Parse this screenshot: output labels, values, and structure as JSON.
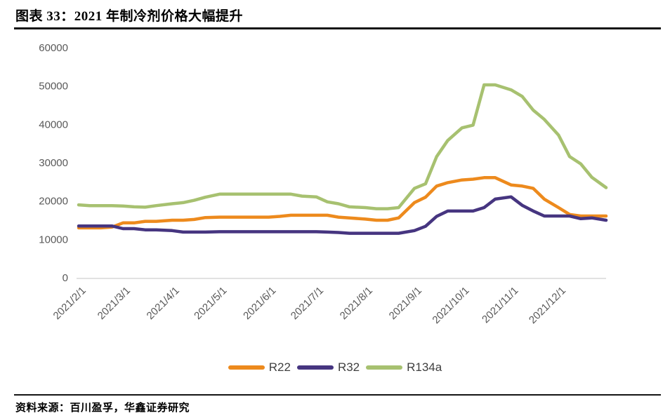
{
  "page": {
    "title": "图表 33：2021 年制冷剂价格大幅提升",
    "source": "资料来源：百川盈孚，华鑫证券研究"
  },
  "chart_data": {
    "type": "line",
    "title": "2021 年制冷剂价格大幅提升",
    "xlabel": "",
    "ylabel": "",
    "ylim": [
      0,
      60000
    ],
    "y_ticks": [
      0,
      10000,
      20000,
      30000,
      40000,
      50000,
      60000
    ],
    "x_tick_labels": [
      "2021/2/1",
      "2021/3/1",
      "2021/4/1",
      "2021/5/1",
      "2021/6/1",
      "2021/7/1",
      "2021/8/1",
      "2021/9/1",
      "2021/10/1",
      "2021/11/1",
      "2021/12/1"
    ],
    "grid": false,
    "legend_position": "bottom",
    "axis_color": "#d9d9d9",
    "x": [
      "2021/2/1",
      "2021/2/8",
      "2021/2/15",
      "2021/2/22",
      "2021/3/1",
      "2021/3/8",
      "2021/3/15",
      "2021/3/22",
      "2021/4/1",
      "2021/4/8",
      "2021/4/15",
      "2021/4/22",
      "2021/5/1",
      "2021/5/8",
      "2021/5/15",
      "2021/5/22",
      "2021/6/1",
      "2021/6/8",
      "2021/6/15",
      "2021/6/22",
      "2021/7/1",
      "2021/7/8",
      "2021/7/15",
      "2021/7/22",
      "2021/8/1",
      "2021/8/8",
      "2021/8/15",
      "2021/8/22",
      "2021/9/1",
      "2021/9/8",
      "2021/9/15",
      "2021/9/22",
      "2021/10/1",
      "2021/10/8",
      "2021/10/15",
      "2021/10/22",
      "2021/11/1",
      "2021/11/8",
      "2021/11/15",
      "2021/11/22",
      "2021/12/1",
      "2021/12/8",
      "2021/12/15",
      "2021/12/22",
      "2021/12/31"
    ],
    "series": [
      {
        "name": "R22",
        "color": "#ED8A1D",
        "values": [
          13000,
          13000,
          13000,
          13200,
          14300,
          14300,
          14700,
          14700,
          15000,
          15000,
          15200,
          15700,
          15800,
          15800,
          15800,
          15800,
          15800,
          16000,
          16300,
          16300,
          16300,
          16300,
          15800,
          15600,
          15300,
          15000,
          15000,
          15600,
          19600,
          21000,
          23900,
          24800,
          25500,
          25700,
          26100,
          26100,
          24200,
          23900,
          23300,
          20500,
          18300,
          16500,
          16100,
          16100,
          16100
        ]
      },
      {
        "name": "R32",
        "color": "#463580",
        "values": [
          13500,
          13500,
          13500,
          13500,
          12800,
          12800,
          12500,
          12500,
          12300,
          11900,
          11900,
          11900,
          12000,
          12000,
          12000,
          12000,
          12000,
          12000,
          12000,
          12000,
          12000,
          11900,
          11800,
          11600,
          11600,
          11600,
          11600,
          11600,
          12300,
          13400,
          16000,
          17400,
          17400,
          17400,
          18300,
          20500,
          21100,
          18900,
          17400,
          16100,
          16100,
          16100,
          15400,
          15600,
          15000
        ]
      },
      {
        "name": "R134a",
        "color": "#A7C170",
        "values": [
          19000,
          18800,
          18800,
          18800,
          18700,
          18500,
          18400,
          18800,
          19300,
          19600,
          20200,
          21000,
          21800,
          21800,
          21800,
          21800,
          21800,
          21800,
          21800,
          21300,
          21100,
          19800,
          19300,
          18500,
          18300,
          18000,
          18000,
          18300,
          23300,
          24500,
          31600,
          35800,
          39100,
          39800,
          50300,
          50300,
          49000,
          47300,
          43700,
          41300,
          37200,
          31600,
          29700,
          26200,
          23500
        ]
      }
    ]
  }
}
